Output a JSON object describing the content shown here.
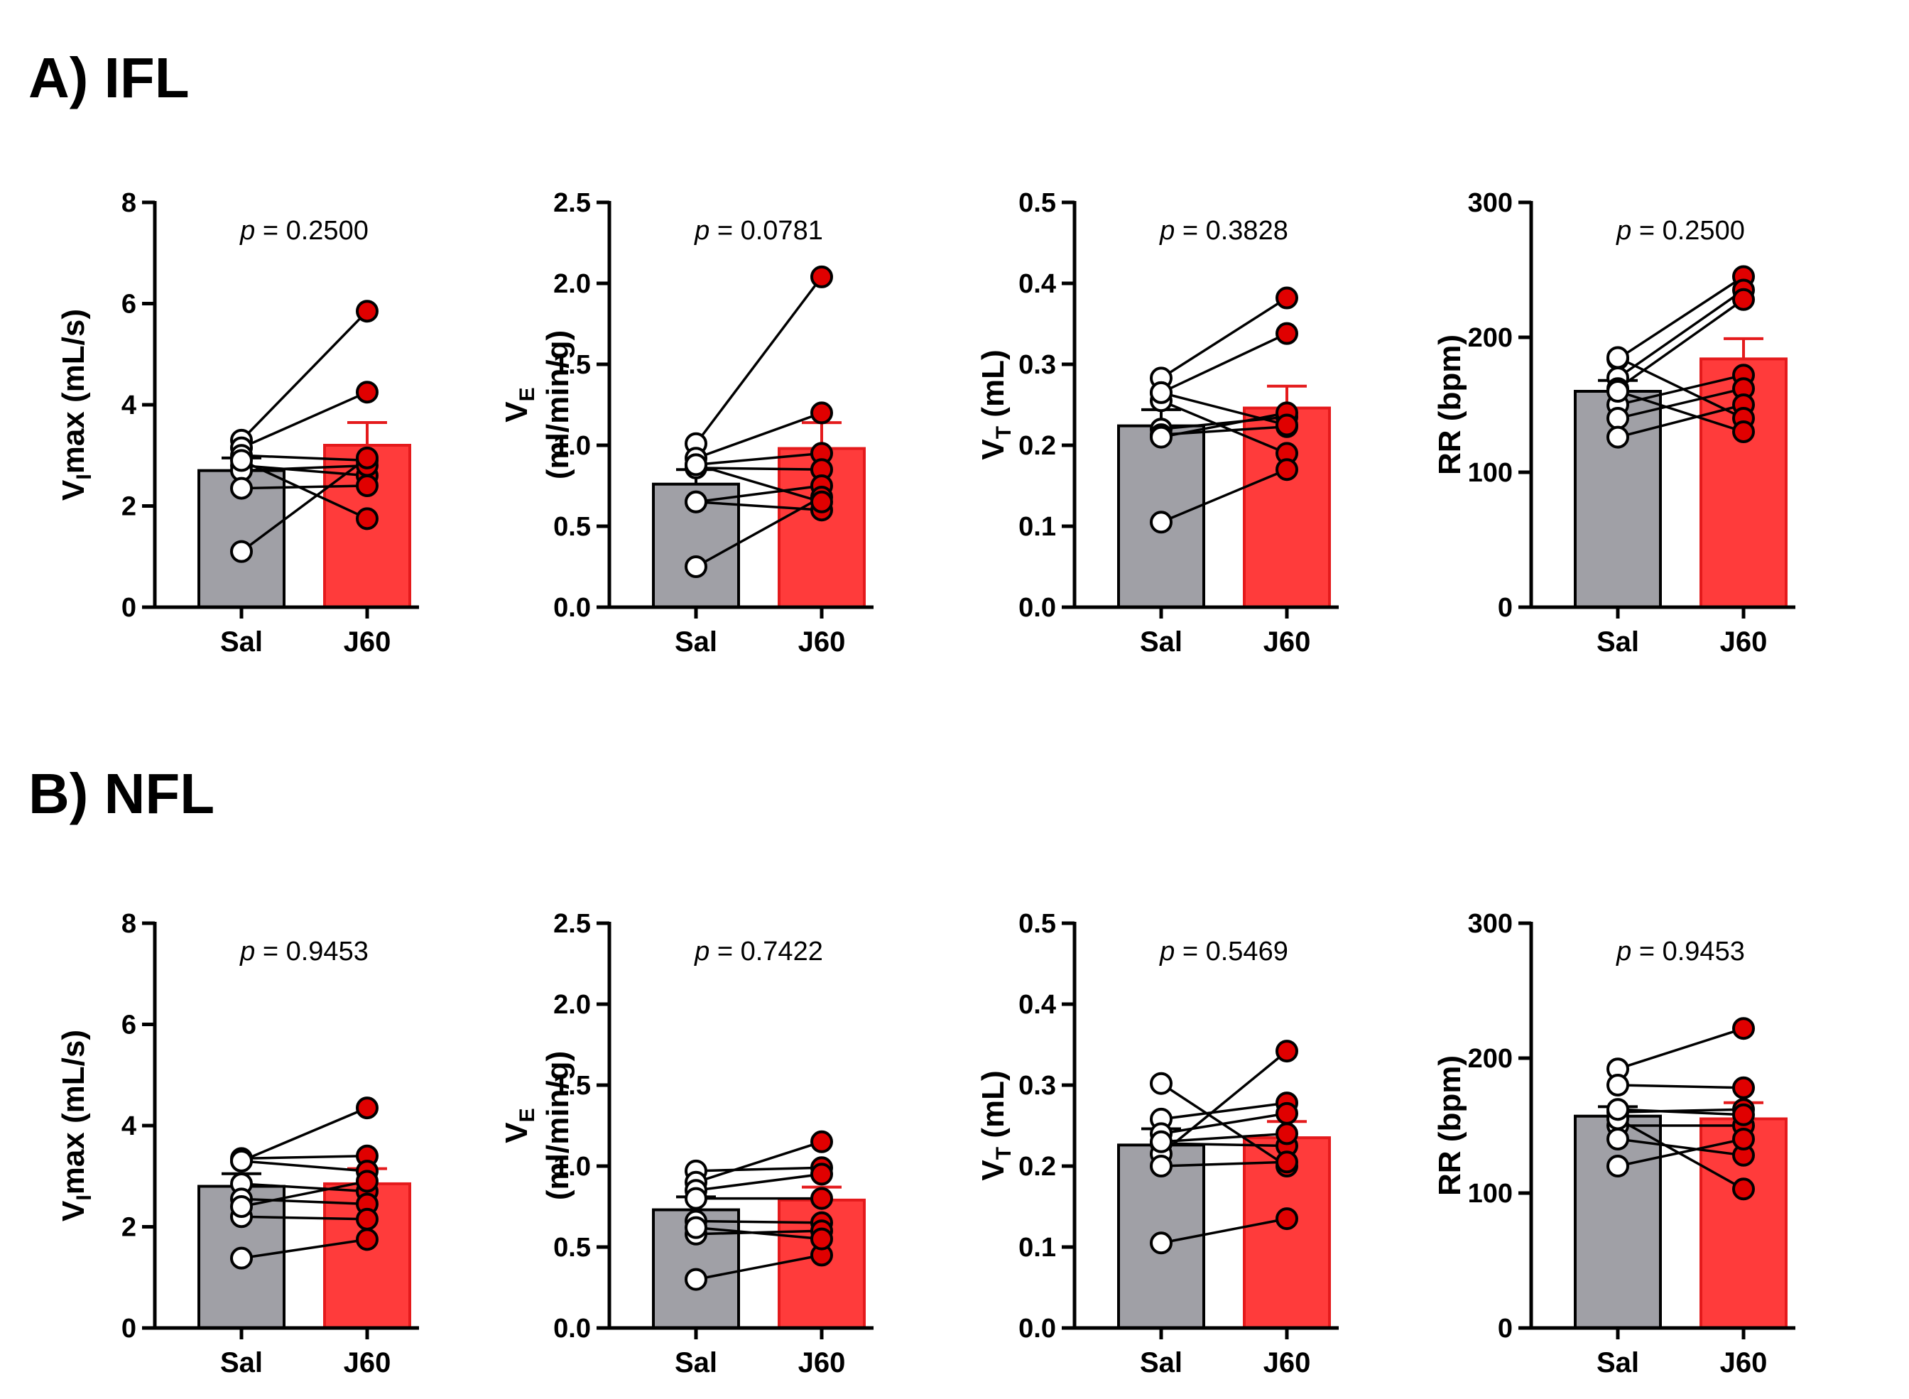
{
  "colors": {
    "sal_bar": "#a0a0a6",
    "j60_bar": "#ff3b3b",
    "j60_edge": "#e41a1c",
    "j60_point": "#e00000",
    "sal_point": "#ffffff",
    "ink": "#000000"
  },
  "sections": [
    {
      "title": "A) IFL"
    },
    {
      "title": "B) NFL"
    }
  ],
  "chart_data": [
    {
      "type": "bar",
      "section": "A) IFL",
      "categories": [
        "Sal",
        "J60"
      ],
      "ylabel": {
        "main": "V",
        "sub": "I",
        "rest": "max (mL/s)",
        "line2": ""
      },
      "yticks": [
        "0",
        "2",
        "4",
        "6",
        "8"
      ],
      "ylim": [
        0,
        8
      ],
      "pvalue": {
        "p": "p",
        "text": " = 0.2500"
      },
      "means": [
        2.7,
        3.2
      ],
      "sem": [
        0.25,
        0.45
      ],
      "pairs": [
        [
          3.3,
          5.85
        ],
        [
          3.15,
          4.25
        ],
        [
          3.0,
          2.9
        ],
        [
          2.8,
          2.6
        ],
        [
          2.7,
          2.8
        ],
        [
          2.35,
          2.4
        ],
        [
          2.9,
          1.75
        ],
        [
          1.1,
          2.95
        ]
      ]
    },
    {
      "type": "bar",
      "section": "A) IFL",
      "categories": [
        "Sal",
        "J60"
      ],
      "ylabel": {
        "main": "V",
        "sub": "E",
        "rest": "",
        "line2": "(ml/min/g)"
      },
      "yticks": [
        "0.0",
        "0.5",
        "1.0",
        "1.5",
        "2.0",
        "2.5"
      ],
      "ylim": [
        0,
        2.5
      ],
      "pvalue": {
        "p": "p",
        "text": " = 0.0781"
      },
      "means": [
        0.76,
        0.98
      ],
      "sem": [
        0.09,
        0.16
      ],
      "pairs": [
        [
          1.01,
          2.04
        ],
        [
          0.92,
          1.2
        ],
        [
          0.88,
          0.95
        ],
        [
          0.86,
          0.85
        ],
        [
          0.65,
          0.75
        ],
        [
          0.65,
          0.6
        ],
        [
          0.25,
          0.68
        ],
        [
          0.88,
          0.65
        ]
      ]
    },
    {
      "type": "bar",
      "section": "A) IFL",
      "categories": [
        "Sal",
        "J60"
      ],
      "ylabel": {
        "main": "V",
        "sub": "T",
        "rest": " (mL)",
        "line2": ""
      },
      "yticks": [
        "0.0",
        "0.1",
        "0.2",
        "0.3",
        "0.4",
        "0.5"
      ],
      "ylim": [
        0,
        0.5
      ],
      "pvalue": {
        "p": "p",
        "text": " = 0.3828"
      },
      "means": [
        0.224,
        0.246
      ],
      "sem": [
        0.02,
        0.027
      ],
      "pairs": [
        [
          0.283,
          0.382
        ],
        [
          0.265,
          0.338
        ],
        [
          0.255,
          0.19
        ],
        [
          0.22,
          0.235
        ],
        [
          0.213,
          0.223
        ],
        [
          0.21,
          0.24
        ],
        [
          0.105,
          0.17
        ],
        [
          0.265,
          0.225
        ]
      ]
    },
    {
      "type": "bar",
      "section": "A) IFL",
      "categories": [
        "Sal",
        "J60"
      ],
      "ylabel": {
        "main": "RR (bpm)",
        "sub": "",
        "rest": "",
        "line2": ""
      },
      "yticks": [
        "0",
        "100",
        "200",
        "300"
      ],
      "ylim": [
        0,
        300
      ],
      "pvalue": {
        "p": "p",
        "text": " = 0.2500"
      },
      "means": [
        160,
        184
      ],
      "sem": [
        8,
        15
      ],
      "pairs": [
        [
          184,
          245
        ],
        [
          170,
          235
        ],
        [
          162,
          228
        ],
        [
          150,
          172
        ],
        [
          140,
          162
        ],
        [
          126,
          150
        ],
        [
          185,
          140
        ],
        [
          160,
          130
        ]
      ]
    },
    {
      "type": "bar",
      "section": "B) NFL",
      "categories": [
        "Sal",
        "J60"
      ],
      "ylabel": {
        "main": "V",
        "sub": "I",
        "rest": "max (mL/s)",
        "line2": ""
      },
      "yticks": [
        "0",
        "2",
        "4",
        "6",
        "8"
      ],
      "ylim": [
        0,
        8
      ],
      "pvalue": {
        "p": "p",
        "text": " = 0.9453"
      },
      "means": [
        2.8,
        2.85
      ],
      "sem": [
        0.25,
        0.3
      ],
      "pairs": [
        [
          3.35,
          3.4
        ],
        [
          3.3,
          3.1
        ],
        [
          2.85,
          2.7
        ],
        [
          2.55,
          2.45
        ],
        [
          2.2,
          2.15
        ],
        [
          1.38,
          1.75
        ],
        [
          3.3,
          4.35
        ],
        [
          2.4,
          2.9
        ]
      ]
    },
    {
      "type": "bar",
      "section": "B) NFL",
      "categories": [
        "Sal",
        "J60"
      ],
      "ylabel": {
        "main": "V",
        "sub": "E",
        "rest": "",
        "line2": "(ml/min/g)"
      },
      "yticks": [
        "0.0",
        "0.5",
        "1.0",
        "1.5",
        "2.0",
        "2.5"
      ],
      "ylim": [
        0,
        2.5
      ],
      "pvalue": {
        "p": "p",
        "text": " = 0.7422"
      },
      "means": [
        0.73,
        0.79
      ],
      "sem": [
        0.08,
        0.08
      ],
      "pairs": [
        [
          0.97,
          0.99
        ],
        [
          0.9,
          1.15
        ],
        [
          0.85,
          0.95
        ],
        [
          0.8,
          0.8
        ],
        [
          0.66,
          0.65
        ],
        [
          0.58,
          0.6
        ],
        [
          0.3,
          0.45
        ],
        [
          0.62,
          0.55
        ]
      ]
    },
    {
      "type": "bar",
      "section": "B) NFL",
      "categories": [
        "Sal",
        "J60"
      ],
      "ylabel": {
        "main": "V",
        "sub": "T",
        "rest": " (mL)",
        "line2": ""
      },
      "yticks": [
        "0.0",
        "0.1",
        "0.2",
        "0.3",
        "0.4",
        "0.5"
      ],
      "ylim": [
        0,
        0.5
      ],
      "pvalue": {
        "p": "p",
        "text": " = 0.5469"
      },
      "means": [
        0.226,
        0.235
      ],
      "sem": [
        0.02,
        0.02
      ],
      "pairs": [
        [
          0.302,
          0.2
        ],
        [
          0.258,
          0.278
        ],
        [
          0.24,
          0.265
        ],
        [
          0.228,
          0.225
        ],
        [
          0.215,
          0.342
        ],
        [
          0.2,
          0.205
        ],
        [
          0.105,
          0.135
        ],
        [
          0.23,
          0.24
        ]
      ]
    },
    {
      "type": "bar",
      "section": "B) NFL",
      "categories": [
        "Sal",
        "J60"
      ],
      "ylabel": {
        "main": "RR (bpm)",
        "sub": "",
        "rest": "",
        "line2": ""
      },
      "yticks": [
        "0",
        "100",
        "200",
        "300"
      ],
      "ylim": [
        0,
        300
      ],
      "pvalue": {
        "p": "p",
        "text": " = 0.9453"
      },
      "means": [
        157,
        155
      ],
      "sem": [
        7,
        12
      ],
      "pairs": [
        [
          192,
          222
        ],
        [
          180,
          178
        ],
        [
          160,
          162
        ],
        [
          150,
          150
        ],
        [
          140,
          128
        ],
        [
          120,
          140
        ],
        [
          155,
          103
        ],
        [
          162,
          158
        ]
      ]
    }
  ]
}
